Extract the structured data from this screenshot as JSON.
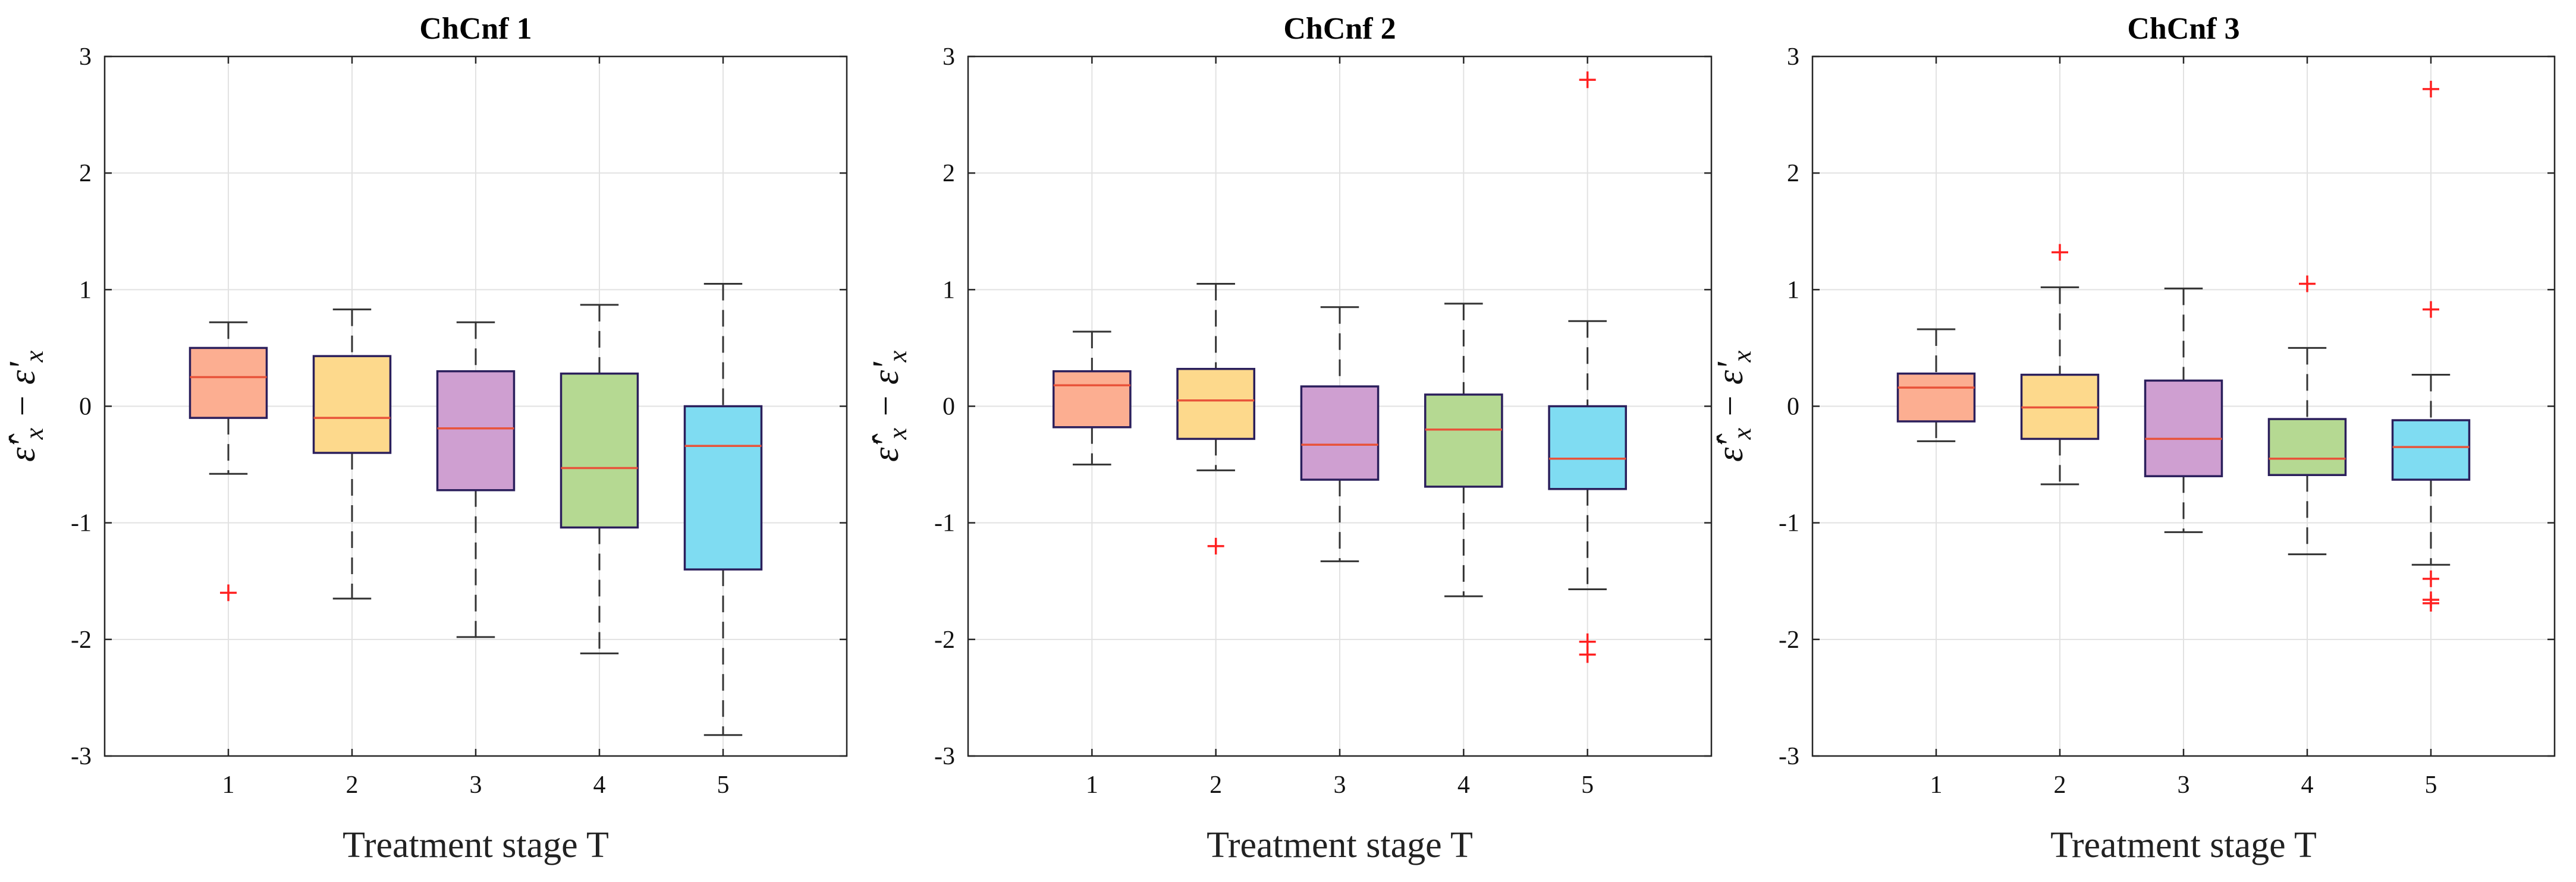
{
  "chart_data": [
    {
      "type": "box",
      "title": "ChCnf 1",
      "xlabel": "Treatment stage T",
      "ylabel": {
        "hat_symbol": "ε̂",
        "prime": "'",
        "subscript": "x",
        "minus": " − ",
        "symbol": "ε"
      },
      "ylim": [
        -3,
        3
      ],
      "yticks": [
        -3,
        -2,
        -1,
        0,
        1,
        2,
        3
      ],
      "categories": [
        "1",
        "2",
        "3",
        "4",
        "5"
      ],
      "grid": true,
      "boxes": [
        {
          "stage": "1",
          "whisker_low": -0.58,
          "q1": -0.1,
          "median": 0.25,
          "q3": 0.5,
          "whisker_high": 0.72,
          "outliers": [
            -1.6
          ],
          "fill": "#fcae91"
        },
        {
          "stage": "2",
          "whisker_low": -1.65,
          "q1": -0.4,
          "median": -0.1,
          "q3": 0.43,
          "whisker_high": 0.83,
          "outliers": [],
          "fill": "#fdd98c"
        },
        {
          "stage": "3",
          "whisker_low": -1.98,
          "q1": -0.72,
          "median": -0.19,
          "q3": 0.3,
          "whisker_high": 0.72,
          "outliers": [],
          "fill": "#cf9fd1"
        },
        {
          "stage": "4",
          "whisker_low": -2.12,
          "q1": -1.04,
          "median": -0.53,
          "q3": 0.28,
          "whisker_high": 0.87,
          "outliers": [],
          "fill": "#b5d992"
        },
        {
          "stage": "5",
          "whisker_low": -2.82,
          "q1": -1.4,
          "median": -0.34,
          "q3": 0.0,
          "whisker_high": 1.05,
          "outliers": [],
          "fill": "#7fdcf2"
        }
      ]
    },
    {
      "type": "box",
      "title": "ChCnf 2",
      "xlabel": "Treatment stage T",
      "ylabel": {
        "hat_symbol": "ε̂",
        "prime": "'",
        "subscript": "x",
        "minus": " − ",
        "symbol": "ε"
      },
      "ylim": [
        -3,
        3
      ],
      "yticks": [
        -3,
        -2,
        -1,
        0,
        1,
        2,
        3
      ],
      "categories": [
        "1",
        "2",
        "3",
        "4",
        "5"
      ],
      "grid": true,
      "boxes": [
        {
          "stage": "1",
          "whisker_low": -0.5,
          "q1": -0.18,
          "median": 0.18,
          "q3": 0.3,
          "whisker_high": 0.64,
          "outliers": [],
          "fill": "#fcae91"
        },
        {
          "stage": "2",
          "whisker_low": -0.55,
          "q1": -0.28,
          "median": 0.05,
          "q3": 0.32,
          "whisker_high": 1.05,
          "outliers": [
            -1.2
          ],
          "fill": "#fdd98c"
        },
        {
          "stage": "3",
          "whisker_low": -1.33,
          "q1": -0.63,
          "median": -0.33,
          "q3": 0.17,
          "whisker_high": 0.85,
          "outliers": [],
          "fill": "#cf9fd1"
        },
        {
          "stage": "4",
          "whisker_low": -1.63,
          "q1": -0.69,
          "median": -0.2,
          "q3": 0.1,
          "whisker_high": 0.88,
          "outliers": [],
          "fill": "#b5d992"
        },
        {
          "stage": "5",
          "whisker_low": -1.57,
          "q1": -0.71,
          "median": -0.45,
          "q3": 0.0,
          "whisker_high": 0.73,
          "outliers": [
            2.8,
            -2.02,
            -2.13
          ],
          "fill": "#7fdcf2"
        }
      ]
    },
    {
      "type": "box",
      "title": "ChCnf 3",
      "xlabel": "Treatment stage T",
      "ylabel": {
        "hat_symbol": "ε̂",
        "prime": "'",
        "subscript": "x",
        "minus": " − ",
        "symbol": "ε"
      },
      "ylim": [
        -3,
        3
      ],
      "yticks": [
        -3,
        -2,
        -1,
        0,
        1,
        2,
        3
      ],
      "categories": [
        "1",
        "2",
        "3",
        "4",
        "5"
      ],
      "grid": true,
      "boxes": [
        {
          "stage": "1",
          "whisker_low": -0.3,
          "q1": -0.13,
          "median": 0.16,
          "q3": 0.28,
          "whisker_high": 0.66,
          "outliers": [],
          "fill": "#fcae91"
        },
        {
          "stage": "2",
          "whisker_low": -0.67,
          "q1": -0.28,
          "median": -0.01,
          "q3": 0.27,
          "whisker_high": 1.02,
          "outliers": [
            1.32
          ],
          "fill": "#fdd98c"
        },
        {
          "stage": "3",
          "whisker_low": -1.08,
          "q1": -0.6,
          "median": -0.28,
          "q3": 0.22,
          "whisker_high": 1.01,
          "outliers": [],
          "fill": "#cf9fd1"
        },
        {
          "stage": "4",
          "whisker_low": -1.27,
          "q1": -0.59,
          "median": -0.45,
          "q3": -0.11,
          "whisker_high": 0.5,
          "outliers": [
            1.05
          ],
          "fill": "#b5d992"
        },
        {
          "stage": "5",
          "whisker_low": -1.36,
          "q1": -0.63,
          "median": -0.35,
          "q3": -0.12,
          "whisker_high": 0.27,
          "outliers": [
            2.72,
            0.83,
            -1.48,
            -1.66,
            -1.69
          ],
          "fill": "#7fdcf2"
        }
      ]
    }
  ],
  "colors": {
    "box_edge": "#2b1f5c",
    "median_line": "#e8533a",
    "whisker": "#333333",
    "outlier": "#ff2020",
    "grid": "#e2e2e2",
    "axes": "#262626"
  }
}
